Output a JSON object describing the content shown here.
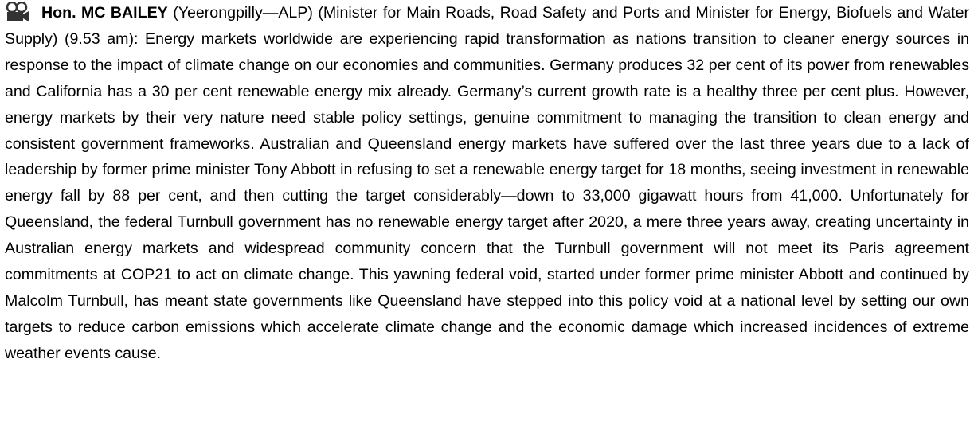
{
  "speech": {
    "speaker": "Hon. MC BAILEY",
    "details": "(Yeerongpilly—ALP) (Minister for Main Roads, Road Safety and Ports and Minister for Energy, Biofuels and Water Supply) (9.53 am):",
    "text": "Energy markets worldwide are experiencing rapid transformation as nations transition to cleaner energy sources in response to the impact of climate change on our economies and communities. Germany produces 32 per cent of its power from renewables and California has a 30 per cent renewable energy mix already. Germany’s current growth rate is a healthy three per cent plus. However, energy markets by their very nature need stable policy settings, genuine commitment to managing the transition to clean energy and consistent government frameworks. Australian and Queensland energy markets have suffered over the last three years due to a lack of leadership by former prime minister Tony Abbott in refusing to set a renewable energy target for 18 months, seeing investment in renewable energy fall by 88 per cent, and then cutting the target considerably—down to 33,000 gigawatt hours from 41,000. Unfortunately for Queensland, the federal Turnbull government has no renewable energy target after 2020, a mere three years away, creating uncertainty in Australian energy markets and widespread community concern that the Turnbull government will not meet its Paris agreement commitments at COP21 to act on climate change. This yawning federal void, started under former prime minister Abbott and continued by Malcolm Turnbull, has meant state governments like Queensland have stepped into this policy void at a national level by setting our own targets to reduce carbon emissions which accelerate climate change and the economic damage which increased incidences of extreme weather events cause."
  }
}
